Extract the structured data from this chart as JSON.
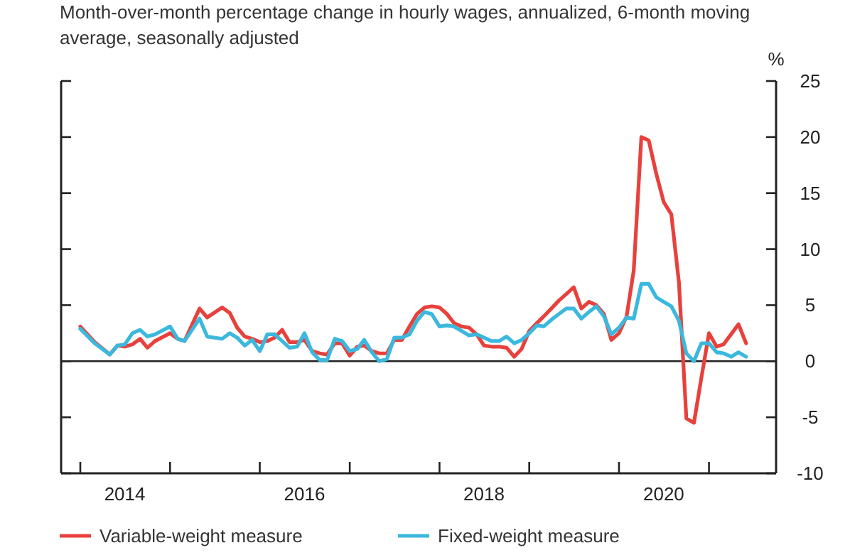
{
  "chart_data": {
    "type": "line",
    "title": "Month-over-month percentage change in hourly wages, annualized, 6-month moving average, seasonally adjusted",
    "ylabel": "%",
    "x": [
      "2014-01",
      "2014-03",
      "2014-05",
      "2014-06",
      "2014-07",
      "2014-08",
      "2014-09",
      "2014-10",
      "2014-11",
      "2015-01",
      "2015-02",
      "2015-03",
      "2015-05",
      "2015-06",
      "2015-08",
      "2015-09",
      "2015-10",
      "2015-11",
      "2015-12",
      "2016-01",
      "2016-02",
      "2016-03",
      "2016-04",
      "2016-05",
      "2016-06",
      "2016-07",
      "2016-08",
      "2016-09",
      "2016-10",
      "2016-11",
      "2016-12",
      "2017-01",
      "2017-02",
      "2017-03",
      "2017-04",
      "2017-05",
      "2017-06",
      "2017-07",
      "2017-08",
      "2017-09",
      "2017-10",
      "2017-11",
      "2017-12",
      "2018-01",
      "2018-02",
      "2018-03",
      "2018-04",
      "2018-05",
      "2018-06",
      "2018-07",
      "2018-08",
      "2018-09",
      "2018-10",
      "2018-11",
      "2018-12",
      "2019-01",
      "2019-02",
      "2019-03",
      "2019-04",
      "2019-05",
      "2019-06",
      "2019-07",
      "2019-08",
      "2019-09",
      "2019-10",
      "2019-11",
      "2019-12",
      "2020-01",
      "2020-02",
      "2020-03",
      "2020-04",
      "2020-05",
      "2020-06",
      "2020-07",
      "2020-08",
      "2020-09",
      "2020-10",
      "2020-11",
      "2020-12",
      "2021-01",
      "2021-02",
      "2021-03",
      "2021-04",
      "2021-05",
      "2021-06"
    ],
    "series": [
      {
        "name": "Variable-weight measure",
        "color": "#e8413c",
        "values": [
          3.1,
          1.7,
          0.6,
          1.4,
          1.3,
          1.5,
          2.0,
          1.2,
          1.8,
          2.5,
          2.0,
          1.8,
          4.7,
          3.9,
          4.8,
          4.3,
          3.0,
          2.2,
          2.0,
          1.7,
          1.8,
          2.1,
          2.8,
          1.7,
          1.7,
          1.9,
          0.9,
          0.7,
          0.6,
          1.6,
          1.6,
          0.5,
          1.3,
          1.4,
          0.9,
          0.7,
          0.7,
          1.9,
          1.9,
          3.1,
          4.2,
          4.8,
          4.9,
          4.8,
          4.2,
          3.4,
          3.1,
          3.0,
          2.4,
          1.4,
          1.3,
          1.3,
          1.2,
          0.4,
          1.1,
          2.7,
          3.4,
          4.0,
          4.7,
          5.4,
          6.0,
          6.6,
          4.7,
          5.3,
          5.0,
          4.2,
          1.9,
          2.5,
          4.0,
          8.1,
          20.0,
          19.7,
          16.7,
          14.2,
          13.1,
          7.0,
          -5.1,
          -5.5,
          -1.5,
          2.5,
          1.3,
          1.5,
          2.4,
          3.3,
          1.6
        ]
      },
      {
        "name": "Fixed-weight measure",
        "color": "#3bb8dd",
        "values": [
          2.9,
          1.6,
          0.6,
          1.4,
          1.5,
          2.5,
          2.8,
          2.2,
          2.4,
          3.1,
          2.0,
          1.8,
          3.8,
          2.2,
          2.0,
          2.5,
          2.1,
          1.4,
          1.9,
          0.9,
          2.4,
          2.4,
          1.8,
          1.2,
          1.3,
          2.5,
          0.8,
          0.1,
          0.1,
          2.0,
          1.8,
          0.9,
          1.1,
          1.9,
          0.8,
          0.0,
          0.2,
          2.1,
          2.1,
          2.4,
          3.6,
          4.4,
          4.2,
          3.1,
          3.2,
          3.1,
          2.7,
          2.3,
          2.4,
          2.1,
          1.8,
          1.8,
          2.2,
          1.6,
          1.9,
          2.5,
          3.2,
          3.1,
          3.7,
          4.2,
          4.7,
          4.7,
          3.8,
          4.4,
          4.9,
          4.0,
          2.4,
          3.0,
          3.9,
          3.8,
          6.9,
          6.9,
          5.7,
          5.3,
          4.9,
          3.6,
          0.7,
          0.0,
          1.6,
          1.6,
          0.8,
          0.7,
          0.4,
          0.8,
          0.4
        ]
      }
    ],
    "xlim": [
      "2013-10-15",
      "2021-10"
    ],
    "xticks": [
      {
        "value": "2014-01",
        "label": null
      },
      {
        "value": "2014-07",
        "label": "2014"
      },
      {
        "value": "2015-01",
        "label": null
      },
      {
        "value": "2016-01",
        "label": null
      },
      {
        "value": "2016-07",
        "label": "2016"
      },
      {
        "value": "2017-01",
        "label": null
      },
      {
        "value": "2018-01",
        "label": null
      },
      {
        "value": "2018-07",
        "label": "2018"
      },
      {
        "value": "2019-01",
        "label": null
      },
      {
        "value": "2020-01",
        "label": null
      },
      {
        "value": "2020-07",
        "label": "2020"
      },
      {
        "value": "2021-01",
        "label": null
      }
    ],
    "ylim": [
      -10,
      25
    ],
    "yticks": [
      -10,
      -5,
      0,
      5,
      10,
      15,
      20,
      25
    ],
    "ref_lines": [
      {
        "axis": "y",
        "value": 0
      }
    ],
    "legend": "bottom",
    "grid": false,
    "line_style": "solid"
  }
}
